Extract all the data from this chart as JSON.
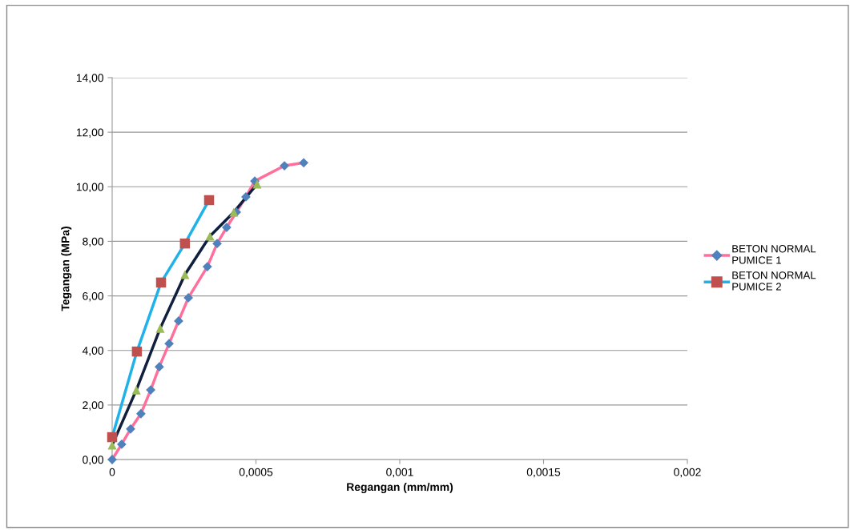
{
  "chart_data": {
    "type": "line",
    "xlabel": "Regangan (mm/mm)",
    "ylabel": "Tegangan (MPa)",
    "xlim": [
      0,
      0.002
    ],
    "xticks": [
      {
        "value": 0,
        "label": "0"
      },
      {
        "value": 0.0005,
        "label": "0,0005"
      },
      {
        "value": 0.001,
        "label": "0,001"
      },
      {
        "value": 0.0015,
        "label": "0,0015"
      },
      {
        "value": 0.002,
        "label": "0,002"
      }
    ],
    "ylim": [
      0,
      14
    ],
    "yticks": [
      {
        "value": 0,
        "label": "0,00"
      },
      {
        "value": 2,
        "label": "2,00"
      },
      {
        "value": 4,
        "label": "4,00"
      },
      {
        "value": 6,
        "label": "6,00"
      },
      {
        "value": 8,
        "label": "8,00"
      },
      {
        "value": 10,
        "label": "10,00"
      },
      {
        "value": 12,
        "label": "12,00"
      },
      {
        "value": 14,
        "label": "14,00"
      }
    ],
    "grid": "y",
    "legend": "right",
    "line_style": "solid",
    "series": [
      {
        "name": "BETON NORMAL PUMICE 1",
        "color": "#ff6f9c",
        "colors": [
          "#4f81bd",
          "#4f81bd",
          "#4f81bd",
          "#4f81bd",
          "#4f81bd",
          "#4f81bd",
          "#4f81bd",
          "#4f81bd",
          "#4f81bd",
          "#4f81bd",
          "#4f81bd",
          "#4f81bd",
          "#4f81bd",
          "#4f81bd",
          "#4f81bd",
          "#4f81bd",
          "#4f81bd"
        ],
        "marker": "diamond",
        "x": [
          0,
          3.3e-05,
          6.4e-05,
          0.0001,
          0.000134,
          0.000164,
          0.000198,
          0.000231,
          0.000265,
          0.000331,
          0.000365,
          0.000398,
          0.000432,
          0.000465,
          0.000496,
          0.000599,
          0.000666
        ],
        "values": [
          0,
          0.56,
          1.12,
          1.68,
          2.55,
          3.4,
          4.25,
          5.08,
          5.93,
          7.07,
          7.92,
          8.51,
          9.07,
          9.63,
          10.21,
          10.77,
          10.88
        ]
      },
      {
        "name": "BETON NORMAL PUMICE 2",
        "color": "#1fb2ea",
        "colors": [
          "#c0504d",
          "#c0504d",
          "#c0504d",
          "#c0504d",
          "#c0504d"
        ],
        "marker": "square",
        "x": [
          0,
          8.6e-05,
          0.00017,
          0.000253,
          0.000337
        ],
        "values": [
          0.82,
          3.96,
          6.49,
          7.92,
          9.51
        ]
      },
      {
        "color": "#0f1f3d",
        "colors": [
          "#9bbb59",
          "#9bbb59",
          "#9bbb59",
          "#9bbb59",
          "#9bbb59",
          "#9bbb59",
          "#9bbb59"
        ],
        "marker": "triangle",
        "x": [
          0,
          8.4e-05,
          0.000167,
          0.000253,
          0.00034,
          0.000423,
          0.000504
        ],
        "values": [
          0.53,
          2.55,
          4.81,
          6.78,
          8.19,
          9.07,
          10.1
        ]
      }
    ]
  }
}
